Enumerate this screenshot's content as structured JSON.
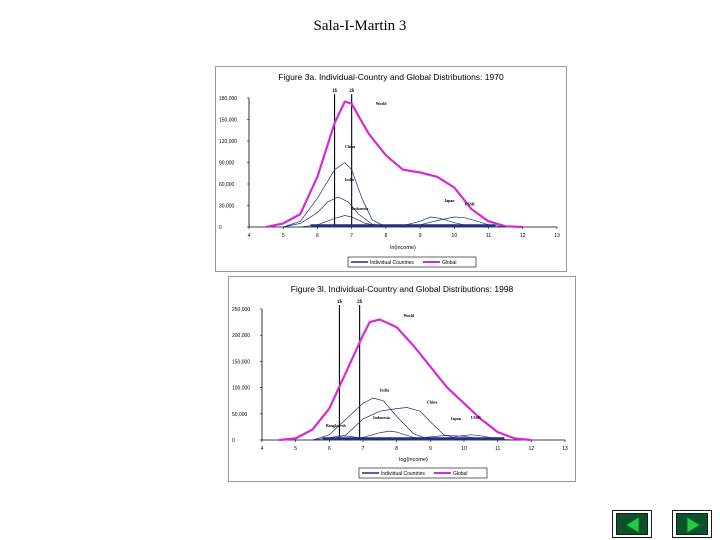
{
  "slide": {
    "title": "Sala-I-Martin 3"
  },
  "colors": {
    "individual": "#1f2f8a",
    "global": "#d62ad6",
    "axis": "#000000"
  },
  "legend": {
    "individual": "Individual Countries",
    "global": "Global"
  },
  "nav": {
    "prev_icon": "triangle-left-icon",
    "next_icon": "triangle-right-icon"
  },
  "chart_data": [
    {
      "type": "line",
      "title": "Figure 3a. Individual-Country and Global Distributions: 1970",
      "xlabel": "ln(income)",
      "ylabel": "",
      "xlim": [
        4,
        13
      ],
      "ylim": [
        0,
        180000
      ],
      "x_ticks": [
        4,
        5,
        6,
        7,
        8,
        9,
        10,
        11,
        12,
        13
      ],
      "y_ticks": [
        0,
        30000,
        60000,
        90000,
        120000,
        150000,
        180000
      ],
      "y_tick_labels": [
        "0",
        "30,000",
        "60,000",
        "90,000",
        "120,000",
        "150,000",
        "180,000"
      ],
      "vlines": [
        {
          "x": 6.5,
          "label": "1$"
        },
        {
          "x": 7.0,
          "label": "2$"
        }
      ],
      "annotations": [
        {
          "text": "World",
          "x": 7.7,
          "y": 170000
        },
        {
          "text": "China",
          "x": 6.8,
          "y": 110000
        },
        {
          "text": "India",
          "x": 6.8,
          "y": 64000
        },
        {
          "text": "Japan",
          "x": 9.7,
          "y": 35000
        },
        {
          "text": "USSR",
          "x": 10.3,
          "y": 30000
        },
        {
          "text": "Indonesia",
          "x": 7.0,
          "y": 24000
        }
      ],
      "series": [
        {
          "name": "Global",
          "x": [
            4.5,
            5,
            5.5,
            6,
            6.5,
            6.8,
            7,
            7.2,
            7.5,
            8,
            8.5,
            9,
            9.5,
            10,
            10.5,
            11,
            11.5,
            12
          ],
          "y": [
            0,
            5000,
            18000,
            70000,
            145000,
            175000,
            172000,
            155000,
            130000,
            100000,
            80000,
            76000,
            70000,
            55000,
            25000,
            8000,
            1000,
            0
          ]
        },
        {
          "name": "China",
          "x": [
            5,
            5.5,
            6,
            6.5,
            6.8,
            7,
            7.3,
            7.6,
            8
          ],
          "y": [
            0,
            8000,
            40000,
            80000,
            90000,
            80000,
            40000,
            10000,
            0
          ]
        },
        {
          "name": "India",
          "x": [
            5,
            5.5,
            6,
            6.3,
            6.6,
            6.9,
            7.2,
            7.6,
            8
          ],
          "y": [
            0,
            5000,
            20000,
            35000,
            42000,
            35000,
            18000,
            4000,
            0
          ]
        },
        {
          "name": "Indonesia",
          "x": [
            5.5,
            6,
            6.5,
            6.8,
            7,
            7.4,
            8
          ],
          "y": [
            0,
            3000,
            12000,
            16000,
            14000,
            5000,
            0
          ]
        },
        {
          "name": "Japan",
          "x": [
            8,
            8.5,
            9,
            9.3,
            9.6,
            10,
            10.5,
            11
          ],
          "y": [
            0,
            2000,
            8000,
            14000,
            12000,
            6000,
            1000,
            0
          ]
        },
        {
          "name": "USSR",
          "x": [
            8.5,
            9,
            9.5,
            10,
            10.3,
            10.6,
            11,
            11.5
          ],
          "y": [
            0,
            3000,
            9000,
            14000,
            13000,
            9000,
            3000,
            0
          ]
        }
      ]
    },
    {
      "type": "line",
      "title": "Figure 3l. Individual-Country and Global Distributions: 1998",
      "xlabel": "log(income)",
      "ylabel": "",
      "xlim": [
        4,
        13
      ],
      "ylim": [
        0,
        250000
      ],
      "x_ticks": [
        4,
        5,
        6,
        7,
        8,
        9,
        10,
        11,
        12,
        13
      ],
      "y_ticks": [
        0,
        50000,
        100000,
        150000,
        200000,
        250000
      ],
      "y_tick_labels": [
        "0",
        "50,000",
        "100,000",
        "150,000",
        "200,000",
        "250,000"
      ],
      "vlines": [
        {
          "x": 6.3,
          "label": "1$"
        },
        {
          "x": 6.9,
          "label": "2$"
        }
      ],
      "annotations": [
        {
          "text": "World",
          "x": 8.2,
          "y": 235000
        },
        {
          "text": "India",
          "x": 7.5,
          "y": 93000
        },
        {
          "text": "China",
          "x": 8.9,
          "y": 70000
        },
        {
          "text": "Japan",
          "x": 9.6,
          "y": 38000
        },
        {
          "text": "USSR",
          "x": 10.2,
          "y": 40000
        },
        {
          "text": "Indonesia",
          "x": 7.3,
          "y": 40000
        },
        {
          "text": "Bangladesh",
          "x": 5.9,
          "y": 25000
        }
      ],
      "series": [
        {
          "name": "Global",
          "x": [
            4.5,
            5,
            5.5,
            6,
            6.5,
            7,
            7.2,
            7.5,
            8,
            8.5,
            9,
            9.5,
            10,
            10.5,
            11,
            11.5,
            12
          ],
          "y": [
            0,
            3000,
            20000,
            60000,
            130000,
            200000,
            225000,
            230000,
            215000,
            180000,
            140000,
            100000,
            70000,
            40000,
            15000,
            3000,
            0
          ]
        },
        {
          "name": "China",
          "x": [
            6,
            6.5,
            7,
            7.5,
            8,
            8.3,
            8.7,
            9,
            9.4,
            10
          ],
          "y": [
            0,
            10000,
            40000,
            55000,
            60000,
            62000,
            55000,
            35000,
            10000,
            0
          ]
        },
        {
          "name": "India",
          "x": [
            5.5,
            6,
            6.5,
            7,
            7.3,
            7.6,
            8,
            8.5,
            9
          ],
          "y": [
            0,
            10000,
            40000,
            70000,
            80000,
            75000,
            45000,
            12000,
            0
          ]
        },
        {
          "name": "Indonesia",
          "x": [
            6.5,
            7,
            7.5,
            7.8,
            8,
            8.5,
            9
          ],
          "y": [
            0,
            5000,
            14000,
            17000,
            15000,
            5000,
            0
          ]
        },
        {
          "name": "Japan",
          "x": [
            9,
            9.5,
            9.9,
            10.2,
            10.5,
            11,
            11.5
          ],
          "y": [
            0,
            3000,
            8000,
            10000,
            8000,
            2000,
            0
          ]
        },
        {
          "name": "USSR",
          "x": [
            8,
            8.5,
            9,
            9.5,
            10,
            10.5,
            11
          ],
          "y": [
            0,
            2000,
            6000,
            9000,
            7000,
            2000,
            0
          ]
        },
        {
          "name": "Bangladesh",
          "x": [
            5.5,
            6,
            6.3,
            6.6,
            7,
            7.5
          ],
          "y": [
            0,
            4000,
            8000,
            7000,
            3000,
            0
          ]
        }
      ]
    }
  ]
}
